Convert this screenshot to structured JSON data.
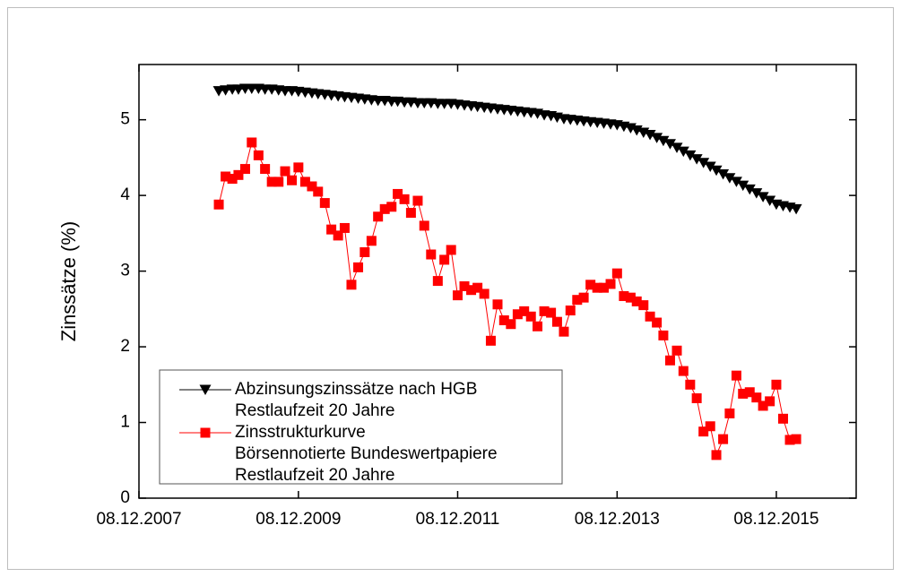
{
  "chart_data": {
    "type": "line",
    "ylabel": "Zinssätze (%)",
    "xlim": [
      "08.12.2007",
      "08.12.2016"
    ],
    "xticks": [
      "08.12.2007",
      "08.12.2009",
      "08.12.2011",
      "08.12.2013",
      "08.12.2015"
    ],
    "ylim": [
      0,
      5.73
    ],
    "yticks": [
      0,
      1,
      2,
      3,
      4,
      5
    ],
    "legend": "bottom-left",
    "x": [
      "08.12.2008",
      "08.01.2009",
      "08.02.2009",
      "08.03.2009",
      "08.04.2009",
      "08.05.2009",
      "08.06.2009",
      "08.07.2009",
      "08.08.2009",
      "08.09.2009",
      "08.10.2009",
      "08.11.2009",
      "08.12.2009",
      "08.01.2010",
      "08.02.2010",
      "08.03.2010",
      "08.04.2010",
      "08.05.2010",
      "08.06.2010",
      "08.07.2010",
      "08.08.2010",
      "08.09.2010",
      "08.10.2010",
      "08.11.2010",
      "08.12.2010",
      "08.01.2011",
      "08.02.2011",
      "08.03.2011",
      "08.04.2011",
      "08.05.2011",
      "08.06.2011",
      "08.07.2011",
      "08.08.2011",
      "08.09.2011",
      "08.10.2011",
      "08.11.2011",
      "08.12.2011",
      "08.01.2012",
      "08.02.2012",
      "08.03.2012",
      "08.04.2012",
      "08.05.2012",
      "08.06.2012",
      "08.07.2012",
      "08.08.2012",
      "08.09.2012",
      "08.10.2012",
      "08.11.2012",
      "08.12.2012",
      "08.01.2013",
      "08.02.2013",
      "08.03.2013",
      "08.04.2013",
      "08.05.2013",
      "08.06.2013",
      "08.07.2013",
      "08.08.2013",
      "08.09.2013",
      "08.10.2013",
      "08.11.2013",
      "08.12.2013",
      "08.01.2014",
      "08.02.2014",
      "08.03.2014",
      "08.04.2014",
      "08.05.2014",
      "08.06.2014",
      "08.07.2014",
      "08.08.2014",
      "08.09.2014",
      "08.10.2014",
      "08.11.2014",
      "08.12.2014",
      "08.01.2015",
      "08.02.2015",
      "08.03.2015",
      "08.04.2015",
      "08.05.2015",
      "08.06.2015",
      "08.07.2015",
      "08.08.2015",
      "08.09.2015",
      "08.10.2015",
      "08.11.2015",
      "08.12.2015",
      "08.01.2016",
      "08.02.2016",
      "08.03.2016"
    ],
    "series": [
      {
        "name": "Abzinsungszinssätze nach HGB\nRestlaufzeit 20 Jahre",
        "color": "#000000",
        "marker": "triangle-down",
        "values": [
          5.38,
          5.39,
          5.4,
          5.4,
          5.41,
          5.41,
          5.41,
          5.4,
          5.4,
          5.39,
          5.38,
          5.38,
          5.37,
          5.36,
          5.35,
          5.34,
          5.33,
          5.32,
          5.31,
          5.3,
          5.29,
          5.28,
          5.27,
          5.26,
          5.25,
          5.25,
          5.24,
          5.24,
          5.23,
          5.23,
          5.22,
          5.22,
          5.22,
          5.21,
          5.21,
          5.21,
          5.2,
          5.19,
          5.18,
          5.17,
          5.16,
          5.15,
          5.14,
          5.13,
          5.12,
          5.11,
          5.1,
          5.09,
          5.08,
          5.06,
          5.05,
          5.03,
          5.01,
          5.0,
          4.99,
          4.98,
          4.97,
          4.96,
          4.95,
          4.94,
          4.93,
          4.91,
          4.89,
          4.86,
          4.83,
          4.8,
          4.76,
          4.72,
          4.68,
          4.63,
          4.58,
          4.53,
          4.48,
          4.43,
          4.38,
          4.33,
          4.28,
          4.23,
          4.18,
          4.13,
          4.08,
          4.03,
          3.98,
          3.93,
          3.88,
          3.86,
          3.84,
          3.82
        ]
      },
      {
        "name": "Zinsstrukturkurve\nBörsennotierte Bundeswertpapiere\nRestlaufzeit 20 Jahre",
        "color": "#ff0000",
        "marker": "square",
        "values": [
          3.88,
          4.25,
          4.22,
          4.27,
          4.35,
          4.7,
          4.53,
          4.35,
          4.18,
          4.18,
          4.32,
          4.2,
          4.37,
          4.18,
          4.12,
          4.05,
          3.9,
          3.55,
          3.47,
          3.57,
          2.82,
          3.05,
          3.25,
          3.4,
          3.72,
          3.82,
          3.85,
          4.02,
          3.95,
          3.77,
          3.93,
          3.6,
          3.22,
          2.87,
          3.15,
          3.28,
          2.68,
          2.8,
          2.75,
          2.78,
          2.7,
          2.08,
          2.56,
          2.35,
          2.3,
          2.43,
          2.47,
          2.4,
          2.27,
          2.47,
          2.45,
          2.33,
          2.2,
          2.48,
          2.62,
          2.65,
          2.82,
          2.78,
          2.78,
          2.83,
          2.97,
          2.67,
          2.65,
          2.6,
          2.55,
          2.4,
          2.32,
          2.15,
          1.82,
          1.95,
          1.68,
          1.5,
          1.32,
          0.88,
          0.95,
          0.57,
          0.78,
          1.12,
          1.62,
          1.38,
          1.4,
          1.33,
          1.22,
          1.28,
          1.5,
          1.05,
          0.77,
          0.78
        ]
      }
    ]
  }
}
